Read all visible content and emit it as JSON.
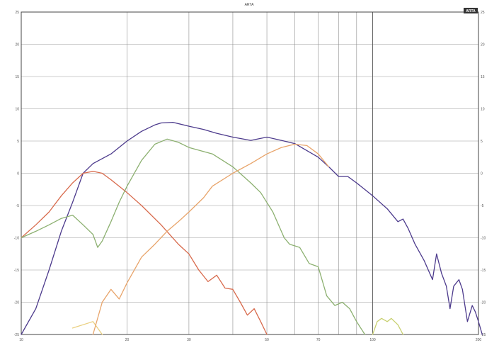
{
  "header": {
    "center": "ARTA",
    "right": "",
    "badge": "ARTA"
  },
  "footer": {
    "left": ""
  },
  "chart_data": {
    "type": "line",
    "title": "ARTA",
    "xlabel": "",
    "ylabel": "",
    "xscale": "log",
    "xlim": [
      10,
      200
    ],
    "ylim": [
      -25,
      25
    ],
    "grid": true,
    "legend": "none",
    "x_tick_labels": [
      "10",
      "20",
      "30",
      "50",
      "70",
      "100",
      "200"
    ],
    "y_tick_labels": [
      "25",
      "20",
      "15",
      "10",
      "5",
      "0",
      "-5",
      "-10",
      "-15",
      "-20",
      "-25"
    ],
    "y_tick_values": [
      25,
      20,
      15,
      10,
      5,
      0,
      -5,
      -10,
      -15,
      -20,
      -25
    ],
    "series": [
      {
        "color": "#4c3a8c",
        "points": [
          [
            10,
            -25
          ],
          [
            11,
            -21
          ],
          [
            12,
            -15
          ],
          [
            13,
            -9
          ],
          [
            14,
            -4.5
          ],
          [
            15,
            0
          ],
          [
            16,
            1.5
          ],
          [
            18,
            3
          ],
          [
            20,
            5
          ],
          [
            22,
            6.5
          ],
          [
            24,
            7.5
          ],
          [
            25,
            7.8
          ],
          [
            27,
            7.9
          ],
          [
            30,
            7.3
          ],
          [
            33,
            6.8
          ],
          [
            36,
            6.2
          ],
          [
            40,
            5.6
          ],
          [
            45,
            5.1
          ],
          [
            50,
            5.6
          ],
          [
            55,
            5.1
          ],
          [
            60,
            4.6
          ],
          [
            70,
            2.5
          ],
          [
            75,
            1
          ],
          [
            80,
            -0.5
          ],
          [
            85,
            -0.5
          ],
          [
            90,
            -1.5
          ],
          [
            100,
            -3.5
          ],
          [
            110,
            -5.5
          ],
          [
            118,
            -7.5
          ],
          [
            122,
            -7.1
          ],
          [
            126,
            -8.5
          ],
          [
            132,
            -11
          ],
          [
            140,
            -13.5
          ],
          [
            148,
            -16.5
          ],
          [
            152,
            -12.5
          ],
          [
            157,
            -15.5
          ],
          [
            162,
            -17.5
          ],
          [
            166,
            -21
          ],
          [
            170,
            -17.5
          ],
          [
            176,
            -16.5
          ],
          [
            180,
            -18
          ],
          [
            186,
            -23
          ],
          [
            192,
            -20.5
          ],
          [
            196,
            -21.5
          ],
          [
            200,
            -23
          ],
          [
            205,
            -25
          ]
        ]
      },
      {
        "color": "#d86a4c",
        "points": [
          [
            10,
            -10
          ],
          [
            11,
            -8
          ],
          [
            12,
            -6
          ],
          [
            13,
            -3.5
          ],
          [
            14,
            -1.5
          ],
          [
            15,
            0
          ],
          [
            16,
            0.3
          ],
          [
            17,
            0
          ],
          [
            18,
            -1
          ],
          [
            20,
            -3
          ],
          [
            22,
            -5
          ],
          [
            25,
            -8
          ],
          [
            28,
            -11
          ],
          [
            30,
            -12.5
          ],
          [
            32,
            -15
          ],
          [
            34,
            -16.8
          ],
          [
            36,
            -15.8
          ],
          [
            38,
            -17.8
          ],
          [
            40,
            -18
          ],
          [
            42,
            -20
          ],
          [
            44,
            -22
          ],
          [
            46,
            -21
          ],
          [
            48,
            -23
          ],
          [
            50,
            -25
          ]
        ]
      },
      {
        "color": "#8cb070",
        "points": [
          [
            10,
            -10
          ],
          [
            11,
            -9
          ],
          [
            12,
            -8
          ],
          [
            13,
            -7
          ],
          [
            14,
            -6.5
          ],
          [
            15,
            -8
          ],
          [
            16,
            -9.5
          ],
          [
            16.5,
            -11.5
          ],
          [
            17,
            -10.5
          ],
          [
            18,
            -7.5
          ],
          [
            19,
            -4.5
          ],
          [
            20,
            -2
          ],
          [
            22,
            2
          ],
          [
            24,
            4.5
          ],
          [
            26,
            5.3
          ],
          [
            28,
            4.8
          ],
          [
            30,
            4
          ],
          [
            35,
            3
          ],
          [
            40,
            1
          ],
          [
            45,
            -1.5
          ],
          [
            48,
            -3
          ],
          [
            52,
            -6
          ],
          [
            56,
            -10
          ],
          [
            58,
            -11
          ],
          [
            62,
            -11.5
          ],
          [
            66,
            -14
          ],
          [
            70,
            -14.5
          ],
          [
            74,
            -19
          ],
          [
            78,
            -20.5
          ],
          [
            82,
            -20
          ],
          [
            86,
            -21
          ],
          [
            90,
            -23
          ],
          [
            95,
            -25
          ]
        ]
      },
      {
        "color": "#ead080",
        "points": [
          [
            14,
            -24
          ],
          [
            16,
            -23
          ],
          [
            17,
            -25
          ]
        ]
      },
      {
        "color": "#e8a46a",
        "points": [
          [
            16,
            -25
          ],
          [
            17,
            -20
          ],
          [
            18,
            -18
          ],
          [
            19,
            -19.5
          ],
          [
            20,
            -17
          ],
          [
            22,
            -13
          ],
          [
            24,
            -11
          ],
          [
            26,
            -9
          ],
          [
            28,
            -7.5
          ],
          [
            30,
            -6
          ],
          [
            33,
            -3.8
          ],
          [
            35,
            -2
          ],
          [
            40,
            0
          ],
          [
            45,
            1.5
          ],
          [
            50,
            3
          ],
          [
            55,
            4
          ],
          [
            60,
            4.5
          ],
          [
            65,
            4.3
          ],
          [
            70,
            3
          ],
          [
            75,
            1
          ]
        ]
      },
      {
        "color": "#c8d070",
        "points": [
          [
            100,
            -25
          ],
          [
            103,
            -23
          ],
          [
            106,
            -22.5
          ],
          [
            110,
            -23
          ],
          [
            113,
            -22.5
          ],
          [
            118,
            -23.5
          ],
          [
            122,
            -25
          ]
        ]
      }
    ]
  }
}
